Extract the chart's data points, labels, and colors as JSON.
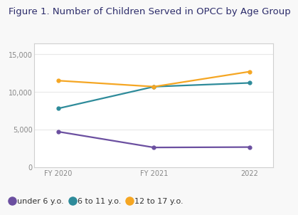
{
  "title": "Figure 1. Number of Children Served in OPCC by Age Group",
  "x_labels": [
    "FY 2020",
    "FY 2021",
    "2022"
  ],
  "x_positions": [
    0,
    1,
    2
  ],
  "series": [
    {
      "label": "under 6 y.o.",
      "values": [
        4700,
        2600,
        2650
      ],
      "color": "#6b4fa0",
      "marker": "o",
      "markersize": 3.5,
      "linewidth": 1.6
    },
    {
      "label": "6 to 11 y.o.",
      "values": [
        7800,
        10700,
        11200
      ],
      "color": "#2e8b9a",
      "marker": "o",
      "markersize": 3.5,
      "linewidth": 1.6
    },
    {
      "label": "12 to 17 y.o.",
      "values": [
        11500,
        10700,
        12700
      ],
      "color": "#f5a623",
      "marker": "o",
      "markersize": 3.5,
      "linewidth": 1.6
    }
  ],
  "ylim": [
    0,
    16500
  ],
  "yticks": [
    0,
    5000,
    10000,
    15000
  ],
  "background_color": "#f8f8f8",
  "plot_bg_color": "#ffffff",
  "grid_color": "#e8e8e8",
  "title_fontsize": 9.5,
  "title_color": "#2d2d6b",
  "tick_fontsize": 7,
  "tick_color": "#888888",
  "legend_fontsize": 8,
  "legend_color": "#333333",
  "border_color": "#d0d0d0"
}
